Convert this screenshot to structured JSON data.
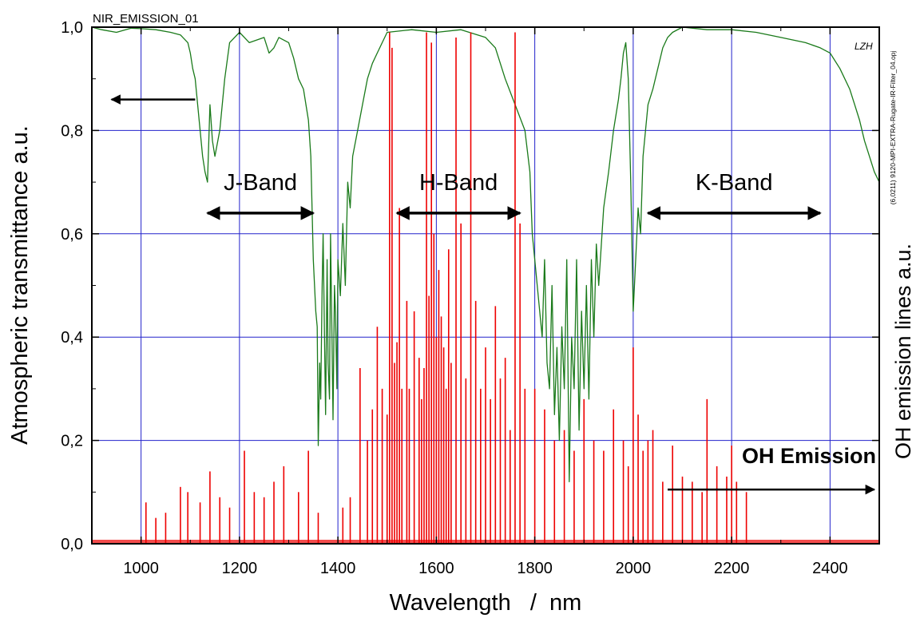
{
  "chart_data": {
    "type": "line",
    "title": "NIR_EMISSION_01",
    "xlabel": "Wavelength   /  nm",
    "ylabel_left": "Atmospheric transmittance  a.u.",
    "ylabel_right": "OH emission lines   a.u.",
    "side_note": "(6,0211) 9120-MPI-EXTRA-Rugate-IR-Filter_04.opj",
    "watermark": "LZH",
    "xlim": [
      900,
      2500
    ],
    "ylim": [
      0.0,
      1.0
    ],
    "x_ticks": [
      1000,
      1200,
      1400,
      1600,
      1800,
      2000,
      2200,
      2400
    ],
    "x_tick_labels": [
      "1000",
      "1200",
      "1400",
      "1600",
      "1800",
      "2000",
      "2200",
      "2400"
    ],
    "y_ticks": [
      0.0,
      0.2,
      0.4,
      0.6,
      0.8,
      1.0
    ],
    "y_tick_labels": [
      "0,0",
      "0,2",
      "0,4",
      "0,6",
      "0,8",
      "1,0"
    ],
    "grid": true,
    "colors": {
      "transmittance": "#1a7a1a",
      "emission": "#ee0000",
      "grid": "#2222cc",
      "emission_label": "#ff0000"
    },
    "bands": [
      {
        "label": "J-Band",
        "x_start": 1135,
        "x_end": 1350,
        "arrow_y": 0.64
      },
      {
        "label": "H-Band",
        "x_start": 1520,
        "x_end": 1770,
        "arrow_y": 0.64
      },
      {
        "label": "K-Band",
        "x_start": 2030,
        "x_end": 2380,
        "arrow_y": 0.64
      }
    ],
    "annotations": {
      "oh_emission_label": "OH Emission",
      "left_arrow": {
        "x_from": 1110,
        "x_to": 940,
        "y": 0.86
      },
      "right_arrow": {
        "x_from": 2070,
        "x_to": 2490,
        "y": 0.105
      }
    },
    "series": [
      {
        "name": "Atmospheric transmittance",
        "x": [
          900,
          920,
          950,
          980,
          1000,
          1030,
          1060,
          1080,
          1095,
          1100,
          1105,
          1110,
          1115,
          1120,
          1125,
          1130,
          1135,
          1140,
          1145,
          1150,
          1160,
          1170,
          1180,
          1200,
          1220,
          1250,
          1260,
          1270,
          1280,
          1300,
          1310,
          1320,
          1330,
          1335,
          1340,
          1345,
          1350,
          1355,
          1358,
          1360,
          1363,
          1365,
          1368,
          1370,
          1373,
          1375,
          1378,
          1380,
          1383,
          1385,
          1388,
          1390,
          1393,
          1395,
          1398,
          1400,
          1405,
          1410,
          1415,
          1420,
          1425,
          1430,
          1440,
          1450,
          1460,
          1470,
          1480,
          1490,
          1500,
          1550,
          1600,
          1650,
          1700,
          1720,
          1740,
          1760,
          1780,
          1790,
          1795,
          1800,
          1805,
          1810,
          1815,
          1820,
          1825,
          1830,
          1835,
          1840,
          1845,
          1850,
          1855,
          1860,
          1865,
          1870,
          1875,
          1880,
          1885,
          1890,
          1895,
          1900,
          1905,
          1910,
          1915,
          1920,
          1925,
          1930,
          1940,
          1950,
          1960,
          1970,
          1975,
          1980,
          1985,
          1990,
          1995,
          2000,
          2005,
          2010,
          2015,
          2020,
          2030,
          2040,
          2050,
          2060,
          2070,
          2080,
          2100,
          2150,
          2200,
          2250,
          2300,
          2350,
          2380,
          2400,
          2420,
          2440,
          2450,
          2460,
          2470,
          2480,
          2490,
          2500
        ],
        "y": [
          1.0,
          0.995,
          0.99,
          0.998,
          0.997,
          0.995,
          0.99,
          0.985,
          0.97,
          0.95,
          0.92,
          0.9,
          0.85,
          0.8,
          0.75,
          0.72,
          0.7,
          0.85,
          0.78,
          0.75,
          0.8,
          0.9,
          0.97,
          0.99,
          0.97,
          0.98,
          0.95,
          0.96,
          0.98,
          0.97,
          0.94,
          0.9,
          0.88,
          0.85,
          0.82,
          0.75,
          0.55,
          0.45,
          0.42,
          0.19,
          0.35,
          0.28,
          0.5,
          0.6,
          0.38,
          0.25,
          0.55,
          0.35,
          0.28,
          0.6,
          0.4,
          0.24,
          0.5,
          0.45,
          0.3,
          0.55,
          0.48,
          0.62,
          0.5,
          0.7,
          0.65,
          0.75,
          0.8,
          0.85,
          0.9,
          0.93,
          0.95,
          0.97,
          0.99,
          0.995,
          0.99,
          0.995,
          0.98,
          0.96,
          0.9,
          0.85,
          0.8,
          0.72,
          0.6,
          0.55,
          0.5,
          0.45,
          0.4,
          0.55,
          0.35,
          0.3,
          0.5,
          0.25,
          0.38,
          0.2,
          0.42,
          0.3,
          0.55,
          0.12,
          0.4,
          0.3,
          0.55,
          0.22,
          0.45,
          0.3,
          0.5,
          0.28,
          0.55,
          0.4,
          0.58,
          0.5,
          0.65,
          0.72,
          0.8,
          0.86,
          0.9,
          0.95,
          0.97,
          0.9,
          0.7,
          0.45,
          0.55,
          0.65,
          0.6,
          0.75,
          0.85,
          0.88,
          0.92,
          0.96,
          0.98,
          0.99,
          1.0,
          0.995,
          0.995,
          0.99,
          0.98,
          0.97,
          0.96,
          0.95,
          0.92,
          0.88,
          0.85,
          0.82,
          0.78,
          0.75,
          0.72,
          0.7
        ]
      },
      {
        "name": "OH emission lines",
        "x": [
          1010,
          1030,
          1050,
          1080,
          1095,
          1120,
          1140,
          1160,
          1180,
          1210,
          1230,
          1250,
          1270,
          1290,
          1320,
          1340,
          1360,
          1410,
          1425,
          1445,
          1460,
          1470,
          1480,
          1490,
          1500,
          1505,
          1510,
          1515,
          1520,
          1525,
          1530,
          1540,
          1545,
          1555,
          1565,
          1570,
          1575,
          1580,
          1585,
          1590,
          1595,
          1600,
          1605,
          1610,
          1615,
          1620,
          1625,
          1630,
          1640,
          1650,
          1660,
          1670,
          1680,
          1690,
          1700,
          1710,
          1720,
          1730,
          1740,
          1750,
          1760,
          1770,
          1780,
          1800,
          1820,
          1840,
          1860,
          1880,
          1900,
          1920,
          1940,
          1960,
          1980,
          1990,
          2000,
          2010,
          2020,
          2030,
          2040,
          2060,
          2080,
          2100,
          2120,
          2140,
          2150,
          2170,
          2190,
          2200,
          2210,
          2230
        ],
        "y": [
          0.08,
          0.05,
          0.06,
          0.11,
          0.1,
          0.08,
          0.14,
          0.09,
          0.07,
          0.18,
          0.1,
          0.09,
          0.12,
          0.15,
          0.1,
          0.18,
          0.06,
          0.07,
          0.09,
          0.34,
          0.2,
          0.26,
          0.42,
          0.3,
          0.25,
          0.99,
          0.96,
          0.35,
          0.39,
          0.65,
          0.3,
          0.47,
          0.3,
          0.45,
          0.36,
          0.28,
          0.34,
          0.99,
          0.48,
          0.97,
          0.6,
          0.4,
          0.53,
          0.44,
          0.38,
          0.3,
          0.57,
          0.35,
          0.98,
          0.62,
          0.32,
          0.99,
          0.47,
          0.3,
          0.38,
          0.28,
          0.46,
          0.32,
          0.36,
          0.22,
          0.99,
          0.62,
          0.3,
          0.3,
          0.26,
          0.2,
          0.22,
          0.18,
          0.28,
          0.2,
          0.18,
          0.26,
          0.2,
          0.15,
          0.38,
          0.25,
          0.18,
          0.2,
          0.22,
          0.12,
          0.19,
          0.13,
          0.12,
          0.1,
          0.28,
          0.15,
          0.13,
          0.19,
          0.12,
          0.1
        ]
      }
    ]
  }
}
